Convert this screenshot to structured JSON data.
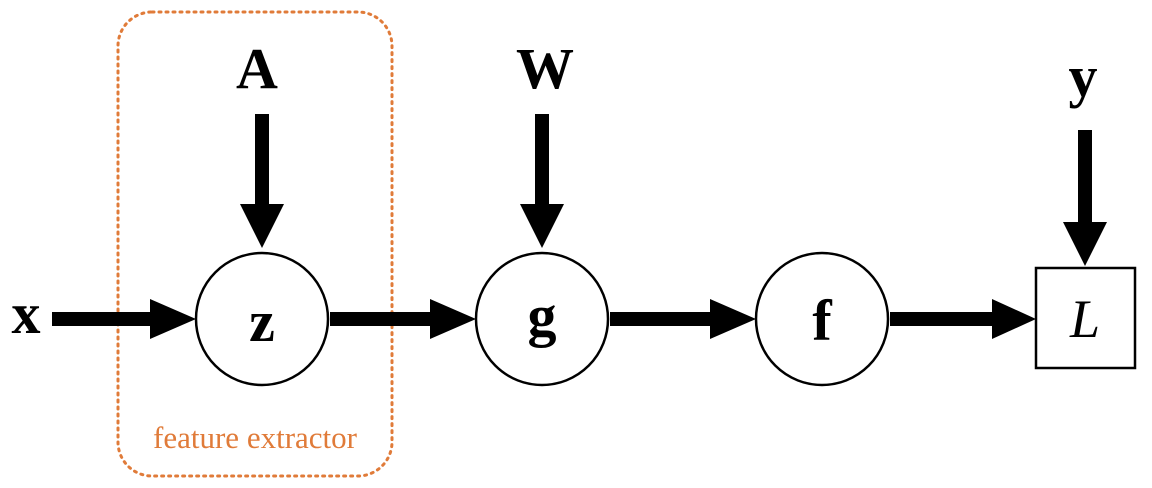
{
  "diagram": {
    "inputs": {
      "x": "x",
      "A": "A",
      "W": "W",
      "y": "y"
    },
    "nodes": {
      "z": "z",
      "g": "g",
      "f": "f",
      "L": "L"
    },
    "group": {
      "label": "feature extractor",
      "color": "#e07b39"
    }
  }
}
